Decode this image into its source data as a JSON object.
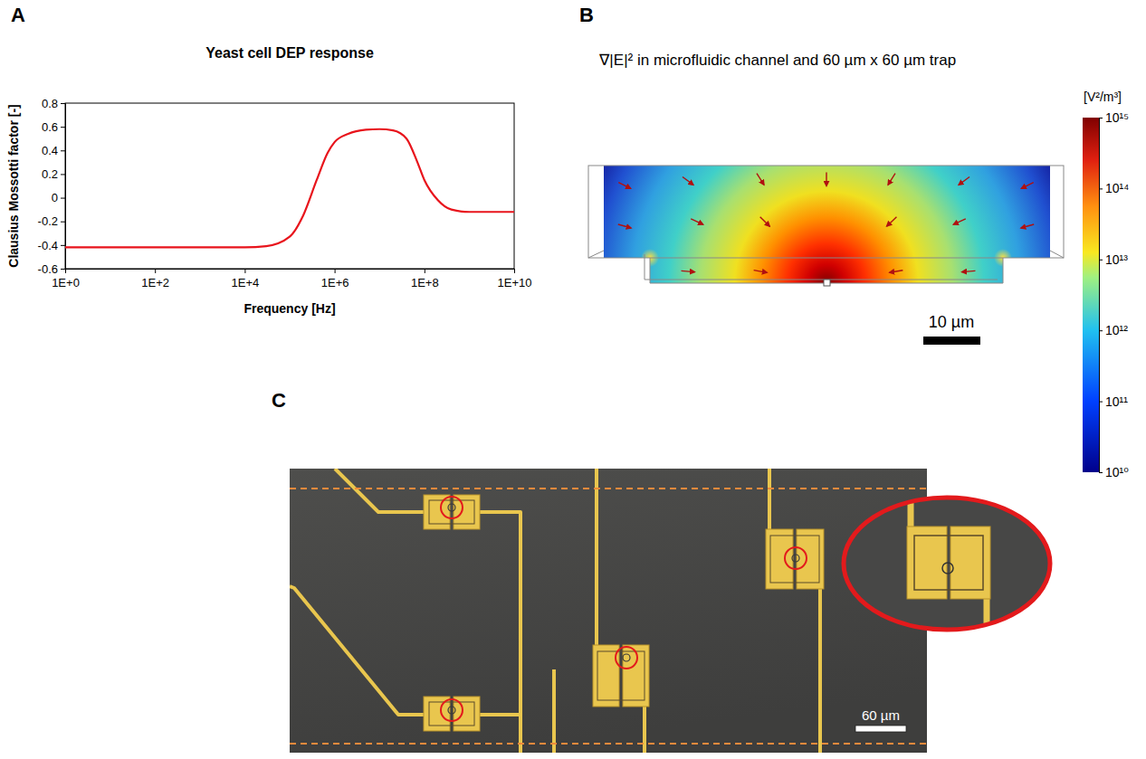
{
  "chart_data": {
    "type": "line",
    "panel_label": "A",
    "title": "Yeast cell DEP response",
    "x_label": "Frequency [Hz]",
    "y_label": "Clausius Mossotti factor [-]",
    "x": [
      1,
      10,
      100,
      1000,
      10000,
      30000,
      100000,
      200000,
      400000,
      700000,
      1000000,
      2000000,
      5000000,
      10000000,
      20000000,
      40000000,
      70000000,
      100000000,
      200000000,
      400000000,
      1000000000,
      10000000000
    ],
    "values": [
      -0.42,
      -0.42,
      -0.42,
      -0.42,
      -0.42,
      -0.41,
      -0.33,
      -0.15,
      0.15,
      0.38,
      0.47,
      0.54,
      0.575,
      0.58,
      0.57,
      0.5,
      0.3,
      0.15,
      -0.02,
      -0.1,
      -0.12,
      -0.12
    ],
    "color": "#e8141c",
    "log": "x",
    "grid": false,
    "xlim": [
      1,
      10000000000
    ],
    "xticks": [
      {
        "value": 1,
        "label": "1E+0"
      },
      {
        "value": 100,
        "label": "1E+2"
      },
      {
        "value": 10000,
        "label": "1E+4"
      },
      {
        "value": 1000000,
        "label": "1E+6"
      },
      {
        "value": 100000000,
        "label": "1E+8"
      },
      {
        "value": 10000000000,
        "label": "1E+10"
      }
    ],
    "ylim": [
      -0.6,
      0.8
    ],
    "yticks": [
      -0.6,
      -0.4,
      -0.2,
      0,
      0.2,
      0.4,
      0.6,
      0.8
    ]
  },
  "panel_b": {
    "label": "B",
    "title": "∇|E|² in microfluidic channel and 60 µm x 60 µm trap",
    "colorbar": {
      "unit": "[V²/m³]",
      "range": [
        10000000000,
        1000000000000000
      ],
      "ticks": [
        {
          "value": 10000000000,
          "label": "10¹⁰"
        },
        {
          "value": 100000000000,
          "label": "10¹¹"
        },
        {
          "value": 1000000000000,
          "label": "10¹²"
        },
        {
          "value": 10000000000000,
          "label": "10¹³"
        },
        {
          "value": 100000000000000,
          "label": "10¹⁴"
        },
        {
          "value": 1000000000000000,
          "label": "10¹⁵"
        }
      ]
    },
    "scale_bar": "10 µm"
  },
  "panel_c": {
    "label": "C",
    "scale_bar": "60 µm"
  }
}
